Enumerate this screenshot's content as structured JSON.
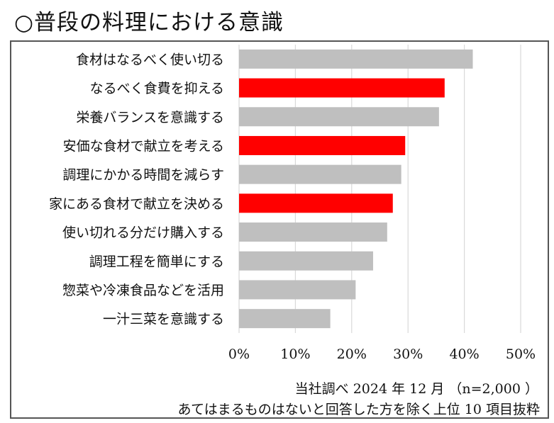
{
  "title": "○普段の料理における意識",
  "footnote_1": "当社調べ 2024 年 12 月 （n=2,000 ）",
  "footnote_2": "あてはまるものはないと回答した方を除く上位 10 項目抜粋",
  "colors": {
    "gray": "#bfbfbf",
    "red": "#ff0000",
    "grid": "#d9d9d9"
  },
  "chart_data": {
    "type": "bar",
    "orientation": "horizontal",
    "categories": [
      "食材はなるべく使い切る",
      "なるべく食費を抑える",
      "栄養バランスを意識する",
      "安価な食材で献立を考える",
      "調理にかかる時間を減らす",
      "家にある食材で献立を決める",
      "使い切れる分だけ購入する",
      "調理工程を簡単にする",
      "惣菜や冷凍食品などを活用",
      "一汁三菜を意識する"
    ],
    "values": [
      41.5,
      36.5,
      35.5,
      29.5,
      28.8,
      27.3,
      26.3,
      23.8,
      20.7,
      16.2
    ],
    "highlight": [
      false,
      true,
      false,
      true,
      false,
      true,
      false,
      false,
      false,
      false
    ],
    "xlim": [
      0,
      50
    ],
    "xticks": [
      0,
      10,
      20,
      30,
      40,
      50
    ],
    "xtick_labels": [
      "0%",
      "10%",
      "20%",
      "30%",
      "40%",
      "50%"
    ],
    "grid": true
  }
}
